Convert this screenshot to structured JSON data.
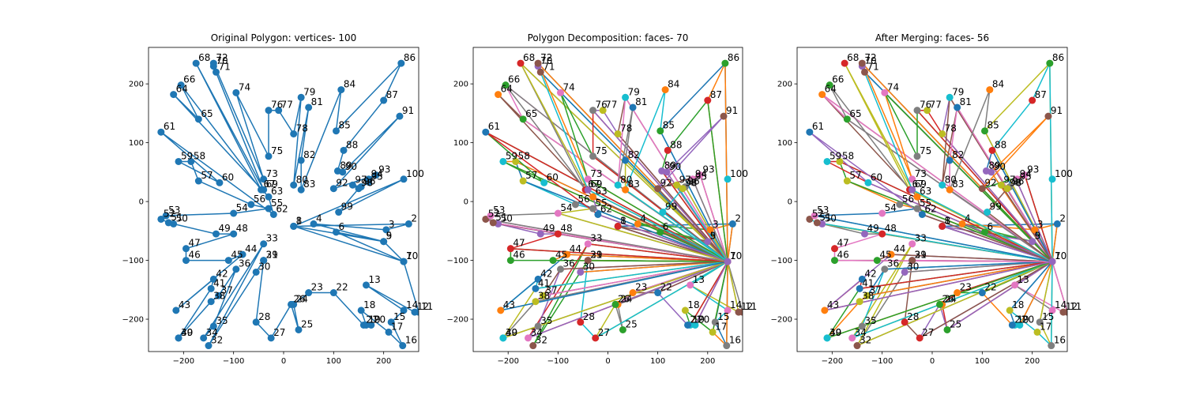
{
  "chart_data": {
    "type": "scatter",
    "x_ticks": [
      -200,
      -100,
      0,
      100,
      200
    ],
    "y_ticks": [
      -200,
      -100,
      0,
      100,
      200
    ],
    "xlim": [
      -270,
      270
    ],
    "ylim": [
      -255,
      262
    ],
    "vertices": [
      [
        20,
        -42
      ],
      [
        250,
        -38
      ],
      [
        205,
        -48
      ],
      [
        60,
        -38
      ],
      [
        200,
        -68
      ],
      [
        105,
        -52
      ],
      [
        240,
        -102
      ],
      [
        20,
        -42
      ],
      [
        200,
        -68
      ],
      [
        240,
        -102
      ],
      [
        270,
        -188
      ],
      [
        262,
        -188
      ],
      [
        165,
        -142
      ],
      [
        240,
        -185
      ],
      [
        215,
        -205
      ],
      [
        238,
        -245
      ],
      [
        210,
        -222
      ],
      [
        155,
        -185
      ],
      [
        165,
        -210
      ],
      [
        175,
        -210
      ],
      [
        160,
        -210
      ],
      [
        100,
        -155
      ],
      [
        50,
        -155
      ],
      [
        20,
        -175
      ],
      [
        30,
        -218
      ],
      [
        15,
        -175
      ],
      [
        -25,
        -232
      ],
      [
        -55,
        -205
      ],
      [
        -40,
        -100
      ],
      [
        -55,
        -120
      ],
      [
        -40,
        -100
      ],
      [
        -150,
        -245
      ],
      [
        -40,
        -72
      ],
      [
        -160,
        -232
      ],
      [
        -140,
        -212
      ],
      [
        -95,
        -115
      ],
      [
        -130,
        -160
      ],
      [
        -145,
        -170
      ],
      [
        -210,
        -232
      ],
      [
        -210,
        -232
      ],
      [
        -145,
        -148
      ],
      [
        -140,
        -132
      ],
      [
        -215,
        -185
      ],
      [
        -82,
        -90
      ],
      [
        -110,
        -100
      ],
      [
        -195,
        -100
      ],
      [
        -195,
        -80
      ],
      [
        -100,
        -55
      ],
      [
        -135,
        -55
      ],
      [
        -220,
        -38
      ],
      [
        -230,
        -36
      ],
      [
        -245,
        -30
      ],
      [
        -235,
        -24
      ],
      [
        -100,
        -20
      ],
      [
        -30,
        -12
      ],
      [
        -65,
        -5
      ],
      [
        -170,
        35
      ],
      [
        -185,
        68
      ],
      [
        -210,
        68
      ],
      [
        -128,
        32
      ],
      [
        -245,
        118
      ],
      [
        -20,
        -22
      ],
      [
        -30,
        8
      ],
      [
        -220,
        182
      ],
      [
        -170,
        140
      ],
      [
        -205,
        198
      ],
      [
        -45,
        20
      ],
      [
        -175,
        235
      ],
      [
        -40,
        20
      ],
      [
        -140,
        230
      ],
      [
        -135,
        220
      ],
      [
        -140,
        235
      ],
      [
        -40,
        38
      ],
      [
        -95,
        185
      ],
      [
        -30,
        77
      ],
      [
        -30,
        155
      ],
      [
        -10,
        155
      ],
      [
        20,
        115
      ],
      [
        35,
        177
      ],
      [
        20,
        28
      ],
      [
        50,
        160
      ],
      [
        35,
        70
      ],
      [
        35,
        20
      ],
      [
        115,
        190
      ],
      [
        105,
        120
      ],
      [
        235,
        235
      ],
      [
        200,
        172
      ],
      [
        120,
        87
      ],
      [
        108,
        52
      ],
      [
        118,
        50
      ],
      [
        232,
        145
      ],
      [
        100,
        22
      ],
      [
        185,
        45
      ],
      [
        170,
        38
      ],
      [
        170,
        33
      ],
      [
        155,
        25
      ],
      [
        138,
        28
      ],
      [
        150,
        22
      ],
      [
        110,
        -18
      ],
      [
        240,
        38
      ]
    ],
    "vertex_labels": [
      "1",
      "2",
      "3",
      "4",
      "5",
      "6",
      "7",
      "8",
      "9",
      "10",
      "11",
      "12",
      "13",
      "14",
      "15",
      "16",
      "17",
      "18",
      "19",
      "20",
      "21",
      "22",
      "23",
      "24",
      "25",
      "26",
      "27",
      "28",
      "29",
      "30",
      "31",
      "32",
      "33",
      "34",
      "35",
      "36",
      "37",
      "38",
      "39",
      "40",
      "41",
      "42",
      "43",
      "44",
      "45",
      "46",
      "47",
      "48",
      "49",
      "50",
      "51",
      "52",
      "53",
      "54",
      "55",
      "56",
      "57",
      "58",
      "59",
      "60",
      "61",
      "62",
      "63",
      "64",
      "65",
      "66",
      "67",
      "68",
      "69",
      "70",
      "71",
      "72",
      "73",
      "74",
      "75",
      "76",
      "77",
      "78",
      "79",
      "80",
      "81",
      "82",
      "83",
      "84",
      "85",
      "86",
      "87",
      "88",
      "89",
      "90",
      "91",
      "92",
      "93",
      "94",
      "95",
      "96",
      "97",
      "98",
      "99",
      "100"
    ],
    "panels": [
      {
        "title": "Original Polygon: vertices- 100",
        "mode": "single"
      },
      {
        "title": "Polygon Decomposition: faces- 70",
        "mode": "faces",
        "face_count": 70
      },
      {
        "title": "After Merging: faces- 56",
        "mode": "faces",
        "face_count": 56
      }
    ],
    "colors": {
      "single": "#1f77b4",
      "cycle": [
        "#1f77b4",
        "#ff7f0e",
        "#2ca02c",
        "#d62728",
        "#9467bd",
        "#8c564b",
        "#e377c2",
        "#7f7f7f",
        "#bcbd22",
        "#17becf"
      ]
    }
  }
}
